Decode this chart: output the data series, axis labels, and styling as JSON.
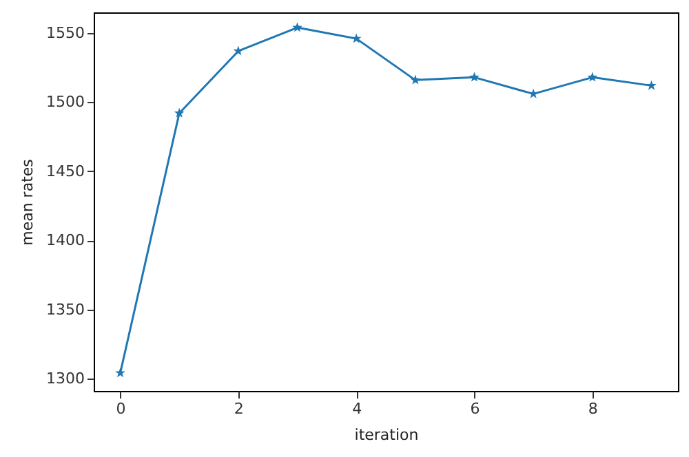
{
  "chart_data": {
    "type": "line",
    "xlabel": "iteration",
    "ylabel": "mean rates",
    "x": [
      0,
      1,
      2,
      3,
      4,
      5,
      6,
      7,
      8,
      9
    ],
    "series": [
      {
        "color": "#1f77b4",
        "values": [
          1304,
          1492,
          1537,
          1554,
          1546,
          1516,
          1518,
          1506,
          1518,
          1512
        ]
      }
    ],
    "xlim": [
      -0.45,
      9.45
    ],
    "xticks": [
      0,
      2,
      4,
      6,
      8
    ],
    "ylim": [
      1291,
      1565
    ],
    "yticks": [
      1300,
      1350,
      1400,
      1450,
      1500,
      1550
    ],
    "marker": "star",
    "line_style": "solid",
    "grid": false
  }
}
